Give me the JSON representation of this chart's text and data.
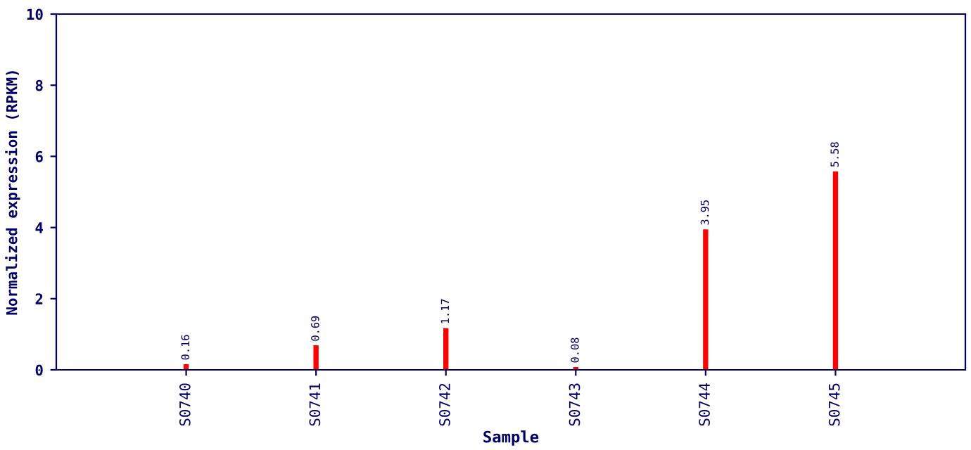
{
  "chart_data": {
    "type": "bar",
    "xlabel": "Sample",
    "ylabel": "Normalized expression (RPKM)",
    "categories": [
      "S0740",
      "S0741",
      "S0742",
      "S0743",
      "S0744",
      "S0745"
    ],
    "values": [
      0.16,
      0.69,
      1.17,
      0.08,
      3.95,
      5.58
    ],
    "color": "#ff0000",
    "ylim": [
      0,
      10
    ],
    "yticks": [
      0,
      2,
      4,
      6,
      8,
      10
    ],
    "grid": false,
    "data_labels": true
  }
}
